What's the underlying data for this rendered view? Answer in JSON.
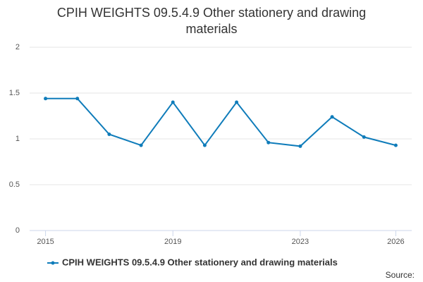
{
  "chart_data": {
    "type": "line",
    "title": "CPIH WEIGHTS 09.5.4.9 Other stationery and drawing materials",
    "x": [
      2015,
      2016,
      2017,
      2018,
      2019,
      2020,
      2021,
      2022,
      2023,
      2024,
      2025,
      2026
    ],
    "series": [
      {
        "name": "CPIH WEIGHTS 09.5.4.9 Other stationery and drawing materials",
        "color": "#0f7cba",
        "values": [
          1.44,
          1.44,
          1.05,
          0.93,
          1.4,
          0.93,
          1.4,
          0.96,
          0.92,
          1.24,
          1.02,
          0.93
        ]
      }
    ],
    "xlim": [
      2014.5,
      2026.5
    ],
    "xticks": [
      2015,
      2019,
      2023,
      2026
    ],
    "ylim": [
      0,
      2
    ],
    "yticks": [
      0,
      0.5,
      1,
      1.5,
      2
    ],
    "grid": true,
    "source": "Source:"
  }
}
